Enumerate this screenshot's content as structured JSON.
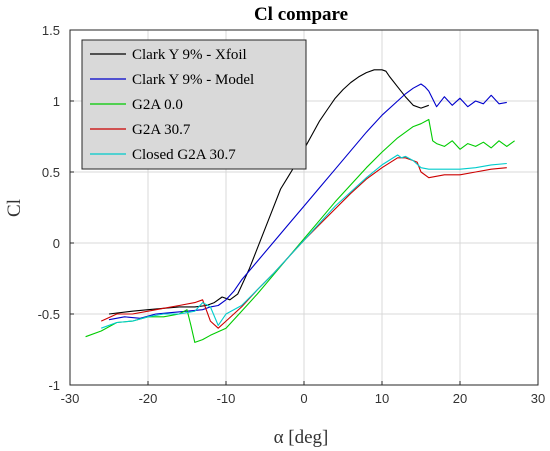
{
  "chart_data": {
    "type": "line",
    "title": "Cl compare",
    "xlabel": "α [deg]",
    "ylabel": "Cl",
    "xlim": [
      -30,
      30
    ],
    "ylim": [
      -1,
      1.5
    ],
    "xticks": [
      -30,
      -20,
      -10,
      0,
      10,
      20,
      30
    ],
    "yticks": [
      -1,
      -0.5,
      0,
      0.5,
      1,
      1.5
    ],
    "xtick_labels": [
      "-30",
      "-20",
      "-10",
      "0",
      "10",
      "20",
      "30"
    ],
    "ytick_labels": [
      "-1",
      "-0.5",
      "0",
      "0.5",
      "1",
      "1.5"
    ],
    "grid": true,
    "legend_position": "top-left",
    "series": [
      {
        "name": "Clark Y 9% - Xfoil",
        "color": "#000000",
        "x": [
          -25,
          -22,
          -20,
          -18,
          -16,
          -14,
          -12.5,
          -11.5,
          -10.5,
          -9.5,
          -8.5,
          -8,
          -7,
          -6,
          -5,
          -4,
          -3,
          -2,
          -1,
          0,
          1,
          2,
          3,
          4,
          5,
          6,
          7,
          8,
          9,
          10,
          10.5,
          11,
          12,
          13,
          14,
          15,
          16
        ],
        "y": [
          -0.5,
          -0.48,
          -0.47,
          -0.46,
          -0.45,
          -0.45,
          -0.44,
          -0.42,
          -0.38,
          -0.4,
          -0.36,
          -0.3,
          -0.18,
          -0.04,
          0.1,
          0.24,
          0.38,
          0.47,
          0.56,
          0.66,
          0.76,
          0.86,
          0.94,
          1.02,
          1.08,
          1.13,
          1.17,
          1.2,
          1.22,
          1.22,
          1.21,
          1.17,
          1.1,
          1.03,
          0.97,
          0.95,
          0.97
        ]
      },
      {
        "name": "Clark Y 9% - Model",
        "color": "#0000cc",
        "x": [
          -25,
          -23,
          -21,
          -19,
          -17,
          -15,
          -13,
          -12,
          -11,
          -10,
          -9,
          -8,
          -6,
          -4,
          -2,
          0,
          2,
          4,
          6,
          8,
          10,
          12,
          13,
          14,
          15,
          15.5,
          16,
          17,
          18,
          19,
          20,
          21,
          22,
          23,
          24,
          25,
          26
        ],
        "y": [
          -0.54,
          -0.52,
          -0.53,
          -0.5,
          -0.49,
          -0.48,
          -0.47,
          -0.45,
          -0.44,
          -0.4,
          -0.34,
          -0.26,
          -0.13,
          0,
          0.13,
          0.26,
          0.39,
          0.52,
          0.65,
          0.78,
          0.9,
          1.0,
          1.05,
          1.09,
          1.12,
          1.1,
          1.07,
          0.96,
          1.03,
          0.97,
          1.02,
          0.96,
          1.0,
          0.98,
          1.04,
          0.98,
          0.99
        ]
      },
      {
        "name": "G2A 0.0",
        "color": "#00cc00",
        "x": [
          -28,
          -26,
          -24,
          -22,
          -20,
          -18,
          -16,
          -15,
          -14.5,
          -14,
          -13,
          -12,
          -10,
          -8,
          -6,
          -4,
          -2,
          0,
          2,
          4,
          6,
          8,
          10,
          12,
          14,
          15,
          16,
          16.5,
          17,
          18,
          19,
          20,
          21,
          22,
          23,
          24,
          25,
          26,
          27
        ],
        "y": [
          -0.66,
          -0.62,
          -0.56,
          -0.55,
          -0.52,
          -0.52,
          -0.5,
          -0.47,
          -0.58,
          -0.7,
          -0.68,
          -0.65,
          -0.6,
          -0.48,
          -0.36,
          -0.23,
          -0.1,
          0.03,
          0.16,
          0.29,
          0.41,
          0.53,
          0.64,
          0.74,
          0.82,
          0.84,
          0.87,
          0.72,
          0.7,
          0.68,
          0.72,
          0.66,
          0.7,
          0.68,
          0.71,
          0.67,
          0.72,
          0.68,
          0.72
        ]
      },
      {
        "name": "G2A 30.7",
        "color": "#cc0000",
        "x": [
          -26,
          -24,
          -22,
          -20,
          -18,
          -16,
          -14,
          -13,
          -12,
          -11,
          -10,
          -8,
          -6,
          -4,
          -2,
          0,
          2,
          4,
          6,
          8,
          10,
          12,
          13,
          14,
          14.5,
          15,
          16,
          18,
          20,
          22,
          24,
          26
        ],
        "y": [
          -0.55,
          -0.5,
          -0.5,
          -0.48,
          -0.46,
          -0.44,
          -0.42,
          -0.4,
          -0.55,
          -0.6,
          -0.55,
          -0.45,
          -0.33,
          -0.22,
          -0.1,
          0.02,
          0.13,
          0.24,
          0.35,
          0.45,
          0.53,
          0.6,
          0.6,
          0.58,
          0.57,
          0.5,
          0.46,
          0.48,
          0.48,
          0.5,
          0.52,
          0.53
        ]
      },
      {
        "name": "Closed G2A 30.7",
        "color": "#00cccc",
        "x": [
          -26,
          -24,
          -22,
          -20,
          -18,
          -16,
          -14,
          -13,
          -12,
          -11,
          -10,
          -8,
          -6,
          -4,
          -2,
          0,
          2,
          4,
          6,
          8,
          10,
          12,
          12.5,
          13,
          14,
          15,
          16,
          18,
          20,
          22,
          24,
          26
        ],
        "y": [
          -0.6,
          -0.56,
          -0.55,
          -0.52,
          -0.5,
          -0.5,
          -0.48,
          -0.42,
          -0.45,
          -0.58,
          -0.5,
          -0.44,
          -0.33,
          -0.22,
          -0.1,
          0.02,
          0.14,
          0.26,
          0.36,
          0.46,
          0.55,
          0.62,
          0.6,
          0.61,
          0.58,
          0.53,
          0.52,
          0.52,
          0.52,
          0.53,
          0.55,
          0.56
        ]
      }
    ]
  }
}
